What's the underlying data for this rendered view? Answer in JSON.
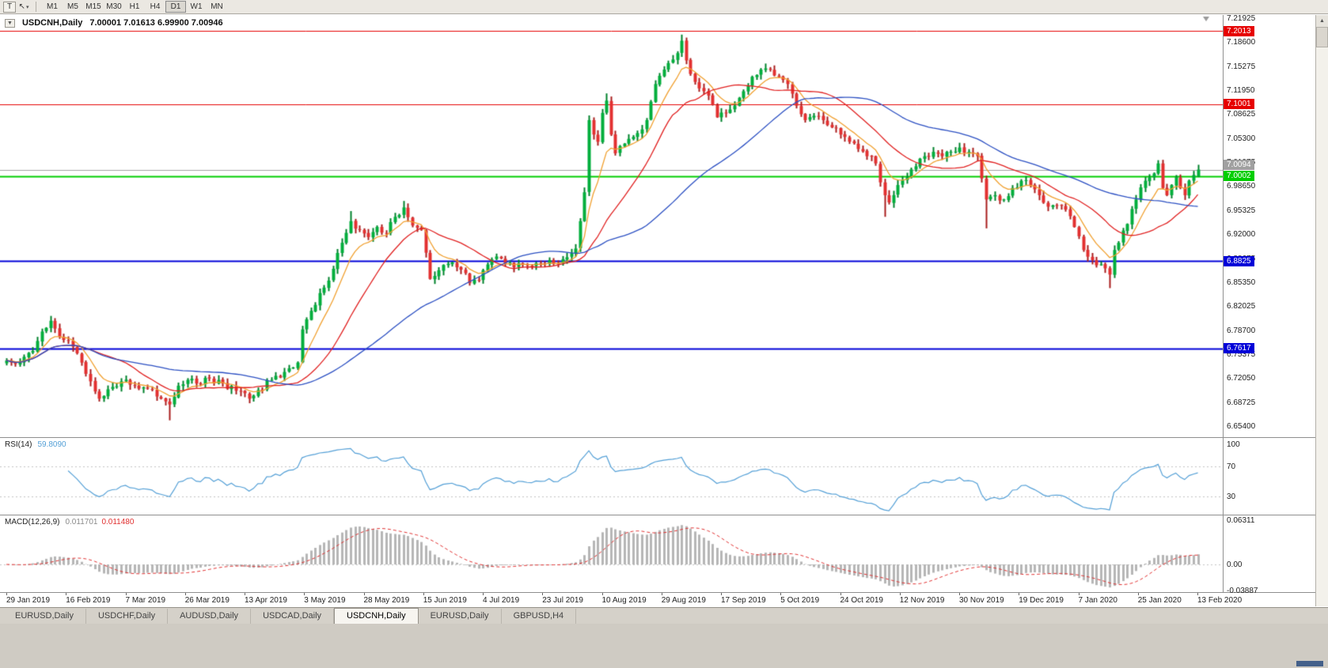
{
  "toolbar": {
    "text_tool_label": "T",
    "cursor_glyph": "↖",
    "caret_glyph": "▾",
    "timeframes": [
      {
        "label": "M1",
        "active": false
      },
      {
        "label": "M5",
        "active": false
      },
      {
        "label": "M15",
        "active": false
      },
      {
        "label": "M30",
        "active": false
      },
      {
        "label": "H1",
        "active": false
      },
      {
        "label": "H4",
        "active": false
      },
      {
        "label": "D1",
        "active": true
      },
      {
        "label": "W1",
        "active": false
      },
      {
        "label": "MN",
        "active": false
      }
    ]
  },
  "header": {
    "collapse_glyph": "▼",
    "symbol_period": "USDCNH,Daily",
    "ohlc_text": "7.00001 7.01613 6.99900 7.00946"
  },
  "chart": {
    "price_axis_ticks": [
      "7.21925",
      "7.18600",
      "7.15275",
      "7.11950",
      "7.08625",
      "7.05300",
      "7.01975",
      "6.98650",
      "6.95325",
      "6.92000",
      "6.88675",
      "6.85350",
      "6.82025",
      "6.78700",
      "6.75375",
      "6.72050",
      "6.68725",
      "6.65400"
    ],
    "levels": [
      {
        "id": "resistance-1",
        "price": 7.2013,
        "label": "7.2013",
        "color": "#e60000",
        "width": 1
      },
      {
        "id": "resistance-2",
        "price": 7.1001,
        "label": "7.1001",
        "color": "#e60000",
        "width": 1
      },
      {
        "id": "bid",
        "price": 7.0094,
        "label": "7.0094",
        "color": "#a0a0a0",
        "width": 1
      },
      {
        "id": "pivot",
        "price": 7.0002,
        "label": "7.0002",
        "color": "#00ce00",
        "width": 2
      },
      {
        "id": "support-1",
        "price": 6.8825,
        "label": "6.8825",
        "color": "#0000d8",
        "width": 2
      },
      {
        "id": "support-2",
        "price": 6.7617,
        "label": "6.7617",
        "color": "#0000d8",
        "width": 2
      }
    ],
    "date_labels": [
      "29 Jan 2019",
      "16 Feb 2019",
      "7 Mar 2019",
      "26 Mar 2019",
      "13 Apr 2019",
      "3 May 2019",
      "28 May 2019",
      "15 Jun 2019",
      "4 Jul 2019",
      "23 Jul 2019",
      "10 Aug 2019",
      "29 Aug 2019",
      "17 Sep 2019",
      "5 Oct 2019",
      "24 Oct 2019",
      "12 Nov 2019",
      "30 Nov 2019",
      "19 Dec 2019",
      "7 Jan 2020",
      "25 Jan 2020",
      "13 Feb 2020"
    ]
  },
  "rsi": {
    "header_label": "RSI(14)",
    "header_value": "59.8090",
    "period": 14,
    "line_color": "#539fd6",
    "guide_levels": [
      70,
      30
    ],
    "axis_labels": [
      {
        "text": "100",
        "value": 100
      },
      {
        "text": "70",
        "value": 70
      },
      {
        "text": "30",
        "value": 30
      }
    ]
  },
  "macd": {
    "header_label": "MACD(12,26,9)",
    "header_value_macd": "0.011701",
    "header_value_signal": "0.011480",
    "fast": 12,
    "slow": 26,
    "signal": 9,
    "histogram_color": "#b6b6b6",
    "signal_color": "#e03030",
    "axis_labels": [
      {
        "text": "0.06311",
        "value": 0.06311
      },
      {
        "text": "0.00",
        "value": 0
      },
      {
        "text": "-0.03887",
        "value": -0.03887
      }
    ]
  },
  "tabs": [
    {
      "label": "EURUSD,Daily",
      "active": false
    },
    {
      "label": "USDCHF,Daily",
      "active": false
    },
    {
      "label": "AUDUSD,Daily",
      "active": false
    },
    {
      "label": "USDCAD,Daily",
      "active": false
    },
    {
      "label": "USDCNH,Daily",
      "active": true
    },
    {
      "label": "EURUSD,Daily",
      "active": false
    },
    {
      "label": "GBPUSD,H4",
      "active": false
    }
  ],
  "chart_data": {
    "type": "candlestick",
    "symbol": "USDCNH",
    "timeframe": "Daily",
    "bars": 271,
    "last_bar": {
      "open": 7.00001,
      "high": 7.01613,
      "low": 6.999,
      "close": 7.00946
    },
    "up_color": "#00ae3c",
    "up_wick": "#00832c",
    "down_color": "#e33030",
    "down_wick": "#a81e1e",
    "moving_averages": [
      {
        "period": 8,
        "method": "ema",
        "color": "#f0a030"
      },
      {
        "period": 20,
        "method": "sma",
        "color": "#e02020"
      },
      {
        "period": 50,
        "method": "sma",
        "color": "#2b4fc2"
      }
    ],
    "close_waypoints": [
      [
        0,
        6.745
      ],
      [
        2,
        6.74
      ],
      [
        4,
        6.75
      ],
      [
        6,
        6.758
      ],
      [
        8,
        6.785
      ],
      [
        10,
        6.8
      ],
      [
        12,
        6.778
      ],
      [
        14,
        6.772
      ],
      [
        16,
        6.755
      ],
      [
        17,
        6.742
      ],
      [
        19,
        6.716
      ],
      [
        21,
        6.692
      ],
      [
        23,
        6.705
      ],
      [
        26,
        6.716
      ],
      [
        29,
        6.71
      ],
      [
        32,
        6.706
      ],
      [
        35,
        6.692
      ],
      [
        37,
        6.684
      ],
      [
        39,
        6.71
      ],
      [
        41,
        6.718
      ],
      [
        43,
        6.713
      ],
      [
        46,
        6.72
      ],
      [
        49,
        6.713
      ],
      [
        52,
        6.703
      ],
      [
        55,
        6.692
      ],
      [
        57,
        6.704
      ],
      [
        60,
        6.718
      ],
      [
        63,
        6.729
      ],
      [
        65,
        6.735
      ],
      [
        66,
        6.742
      ],
      [
        67,
        6.788
      ],
      [
        68,
        6.802
      ],
      [
        70,
        6.822
      ],
      [
        72,
        6.846
      ],
      [
        74,
        6.872
      ],
      [
        76,
        6.908
      ],
      [
        78,
        6.938
      ],
      [
        80,
        6.926
      ],
      [
        82,
        6.916
      ],
      [
        84,
        6.93
      ],
      [
        86,
        6.921
      ],
      [
        88,
        6.944
      ],
      [
        90,
        6.957
      ],
      [
        92,
        6.932
      ],
      [
        94,
        6.926
      ],
      [
        96,
        6.858
      ],
      [
        98,
        6.87
      ],
      [
        100,
        6.879
      ],
      [
        102,
        6.874
      ],
      [
        104,
        6.866
      ],
      [
        105,
        6.852
      ],
      [
        107,
        6.856
      ],
      [
        109,
        6.878
      ],
      [
        111,
        6.889
      ],
      [
        113,
        6.879
      ],
      [
        115,
        6.874
      ],
      [
        117,
        6.879
      ],
      [
        119,
        6.876
      ],
      [
        121,
        6.879
      ],
      [
        123,
        6.884
      ],
      [
        125,
        6.879
      ],
      [
        127,
        6.888
      ],
      [
        129,
        6.9
      ],
      [
        130,
        6.938
      ],
      [
        131,
        6.978
      ],
      [
        132,
        7.078
      ],
      [
        133,
        7.058
      ],
      [
        134,
        7.048
      ],
      [
        135,
        7.088
      ],
      [
        136,
        7.105
      ],
      [
        137,
        7.058
      ],
      [
        138,
        7.032
      ],
      [
        139,
        7.042
      ],
      [
        141,
        7.052
      ],
      [
        143,
        7.06
      ],
      [
        145,
        7.078
      ],
      [
        147,
        7.128
      ],
      [
        149,
        7.148
      ],
      [
        151,
        7.162
      ],
      [
        153,
        7.188
      ],
      [
        155,
        7.142
      ],
      [
        157,
        7.122
      ],
      [
        159,
        7.112
      ],
      [
        161,
        7.082
      ],
      [
        163,
        7.088
      ],
      [
        165,
        7.098
      ],
      [
        167,
        7.118
      ],
      [
        169,
        7.138
      ],
      [
        171,
        7.148
      ],
      [
        173,
        7.148
      ],
      [
        175,
        7.138
      ],
      [
        177,
        7.128
      ],
      [
        179,
        7.098
      ],
      [
        181,
        7.078
      ],
      [
        183,
        7.084
      ],
      [
        185,
        7.078
      ],
      [
        187,
        7.068
      ],
      [
        189,
        7.058
      ],
      [
        191,
        7.048
      ],
      [
        193,
        7.038
      ],
      [
        195,
        7.028
      ],
      [
        197,
        7.018
      ],
      [
        199,
        6.974
      ],
      [
        200,
        6.964
      ],
      [
        202,
        6.988
      ],
      [
        204,
        6.999
      ],
      [
        206,
        7.014
      ],
      [
        208,
        7.028
      ],
      [
        210,
        7.034
      ],
      [
        212,
        7.028
      ],
      [
        214,
        7.034
      ],
      [
        216,
        7.04
      ],
      [
        218,
        7.034
      ],
      [
        220,
        7.028
      ],
      [
        222,
        6.968
      ],
      [
        224,
        6.974
      ],
      [
        226,
        6.968
      ],
      [
        228,
        6.984
      ],
      [
        230,
        6.994
      ],
      [
        232,
        6.988
      ],
      [
        234,
        6.974
      ],
      [
        236,
        6.958
      ],
      [
        238,
        6.96
      ],
      [
        240,
        6.954
      ],
      [
        242,
        6.93
      ],
      [
        244,
        6.898
      ],
      [
        246,
        6.884
      ],
      [
        248,
        6.878
      ],
      [
        250,
        6.864
      ],
      [
        251,
        6.898
      ],
      [
        252,
        6.908
      ],
      [
        254,
        6.934
      ],
      [
        256,
        6.968
      ],
      [
        258,
        6.994
      ],
      [
        260,
        7.004
      ],
      [
        261,
        7.018
      ],
      [
        262,
        6.984
      ],
      [
        263,
        6.974
      ],
      [
        264,
        6.988
      ],
      [
        265,
        6.999
      ],
      [
        266,
        6.984
      ],
      [
        267,
        6.974
      ],
      [
        268,
        6.994
      ],
      [
        269,
        7.002
      ],
      [
        270,
        7.00946
      ]
    ],
    "spikes": [
      [
        37,
        "low",
        6.662
      ],
      [
        78,
        "high",
        6.952
      ],
      [
        90,
        "high",
        6.966
      ],
      [
        136,
        "high",
        7.115
      ],
      [
        153,
        "high",
        7.1965
      ],
      [
        199,
        "low",
        6.944
      ],
      [
        222,
        "low",
        6.928
      ],
      [
        250,
        "low",
        6.8452
      ],
      [
        261,
        "high",
        7.0225
      ]
    ],
    "shift_marker": true
  }
}
